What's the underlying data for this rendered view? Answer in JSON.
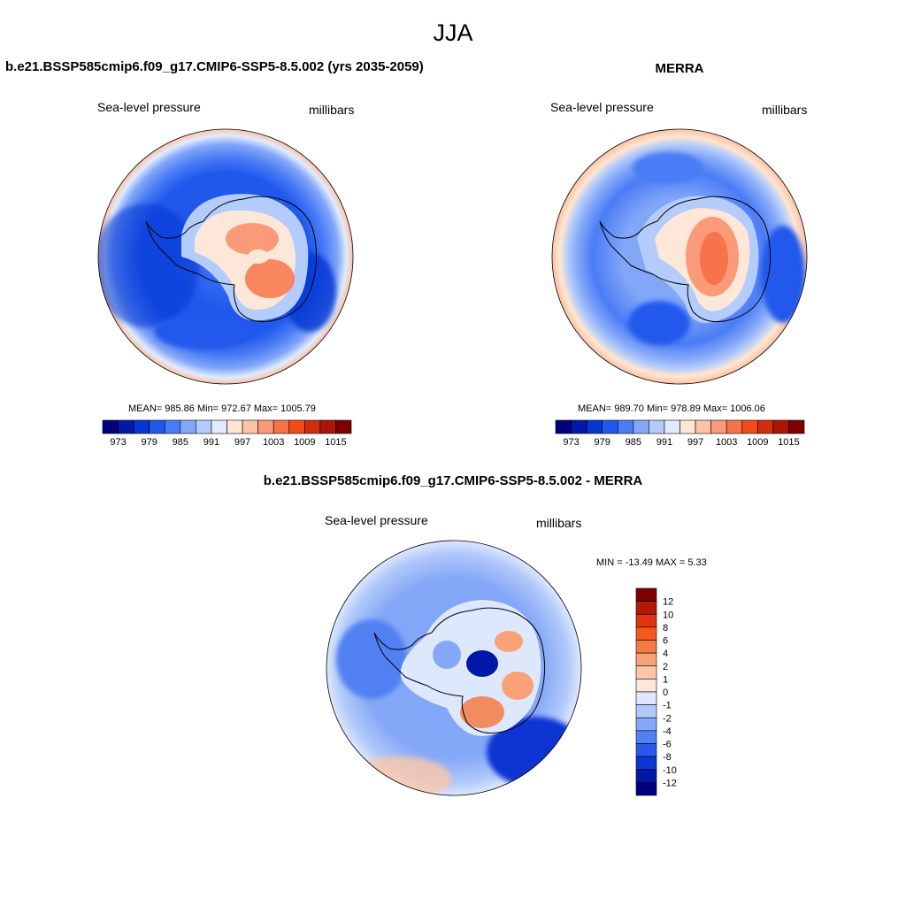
{
  "page": {
    "title": "JJA"
  },
  "panels": {
    "left": {
      "title": "b.e21.BSSP585cmip6.f09_g17.CMIP6-SSP5-8.5.002 (yrs 2035-2059)",
      "variable": "Sea-level pressure",
      "units": "millibars",
      "stats": "MEAN= 985.86  Min= 972.67  Max= 1005.79"
    },
    "right": {
      "title": "MERRA",
      "variable": "Sea-level pressure",
      "units": "millibars",
      "stats": "MEAN= 989.70  Min= 978.89  Max= 1006.06"
    },
    "diff": {
      "title": "b.e21.BSSP585cmip6.f09_g17.CMIP6-SSP5-8.5.002 - MERRA",
      "variable": "Sea-level pressure",
      "units": "millibars",
      "stats": "MIN = -13.49 MAX =   5.33"
    }
  },
  "chart_data": [
    {
      "type": "heatmap",
      "projection": "south-polar-stereographic",
      "title": "b.e21.BSSP585cmip6.f09_g17.CMIP6-SSP5-8.5.002 (yrs 2035-2059)",
      "variable": "Sea-level pressure",
      "units": "millibars",
      "mean": 985.86,
      "min": 972.67,
      "max": 1005.79,
      "colorbar": {
        "orientation": "horizontal",
        "labels": [
          "973",
          "979",
          "985",
          "991",
          "997",
          "1003",
          "1009",
          "1015"
        ],
        "colors": [
          "#00007f",
          "#0019a7",
          "#0535d2",
          "#2058ec",
          "#4a7cf5",
          "#82a6f8",
          "#b4ccfb",
          "#e0ebfd",
          "#ffe6d2",
          "#fdc3a6",
          "#fa9a78",
          "#f7744a",
          "#f14b1c",
          "#d02e0c",
          "#a81606",
          "#7f0000"
        ]
      }
    },
    {
      "type": "heatmap",
      "projection": "south-polar-stereographic",
      "title": "MERRA",
      "variable": "Sea-level pressure",
      "units": "millibars",
      "mean": 989.7,
      "min": 978.89,
      "max": 1006.06,
      "colorbar": {
        "orientation": "horizontal",
        "labels": [
          "973",
          "979",
          "985",
          "991",
          "997",
          "1003",
          "1009",
          "1015"
        ],
        "colors": [
          "#00007f",
          "#0019a7",
          "#0535d2",
          "#2058ec",
          "#4a7cf5",
          "#82a6f8",
          "#b4ccfb",
          "#e0ebfd",
          "#ffe6d2",
          "#fdc3a6",
          "#fa9a78",
          "#f7744a",
          "#f14b1c",
          "#d02e0c",
          "#a81606",
          "#7f0000"
        ]
      }
    },
    {
      "type": "heatmap",
      "projection": "south-polar-stereographic",
      "title": "b.e21.BSSP585cmip6.f09_g17.CMIP6-SSP5-8.5.002 - MERRA",
      "variable": "Sea-level pressure",
      "units": "millibars",
      "min": -13.49,
      "max": 5.33,
      "colorbar": {
        "orientation": "vertical",
        "labels": [
          "12",
          "10",
          "8",
          "6",
          "4",
          "2",
          "1",
          "0",
          "-1",
          "-2",
          "-4",
          "-6",
          "-8",
          "-10",
          "-12"
        ],
        "colors": [
          "#7f0000",
          "#b01a06",
          "#df3410",
          "#f4581f",
          "#f77a45",
          "#f9a177",
          "#fbc6a9",
          "#fde7d8",
          "#dde8fc",
          "#b1c8fa",
          "#84a7f7",
          "#5180f2",
          "#2759ea",
          "#0c36d4",
          "#0118a6",
          "#00007f"
        ]
      }
    }
  ]
}
